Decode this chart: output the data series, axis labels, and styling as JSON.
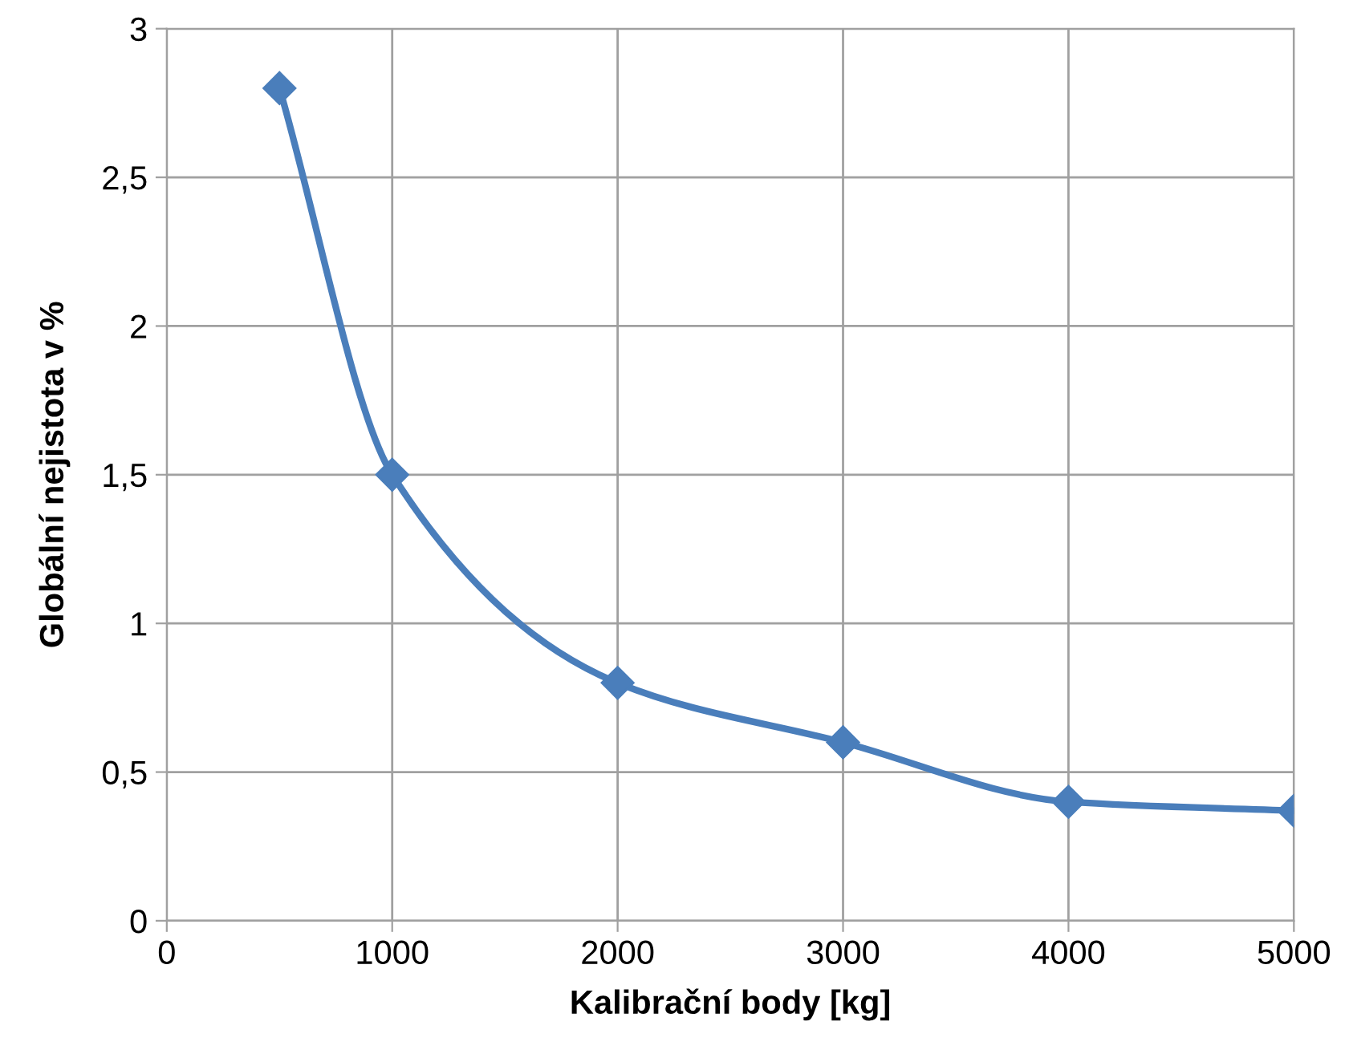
{
  "chart_data": {
    "type": "line",
    "xlabel": "Kalibrační body [kg]",
    "ylabel": "Globální nejistota v %",
    "x": [
      500,
      1000,
      2000,
      3000,
      4000,
      5000
    ],
    "series": [
      {
        "color": "#4a7ebb",
        "values": [
          2.8,
          1.5,
          0.8,
          0.6,
          0.4,
          0.37
        ]
      }
    ],
    "xlim": [
      0,
      5000
    ],
    "xticks": [
      0,
      1000,
      2000,
      3000,
      4000,
      5000
    ],
    "ylim": [
      0,
      3
    ],
    "yticks": [
      0,
      {
        "value": 0.5,
        "label": "0,5"
      },
      1,
      {
        "value": 1.5,
        "label": "1,5"
      },
      2,
      {
        "value": 2.5,
        "label": "2,5"
      },
      3
    ],
    "grid": true,
    "marker": "diamond",
    "line_style": "solid"
  }
}
